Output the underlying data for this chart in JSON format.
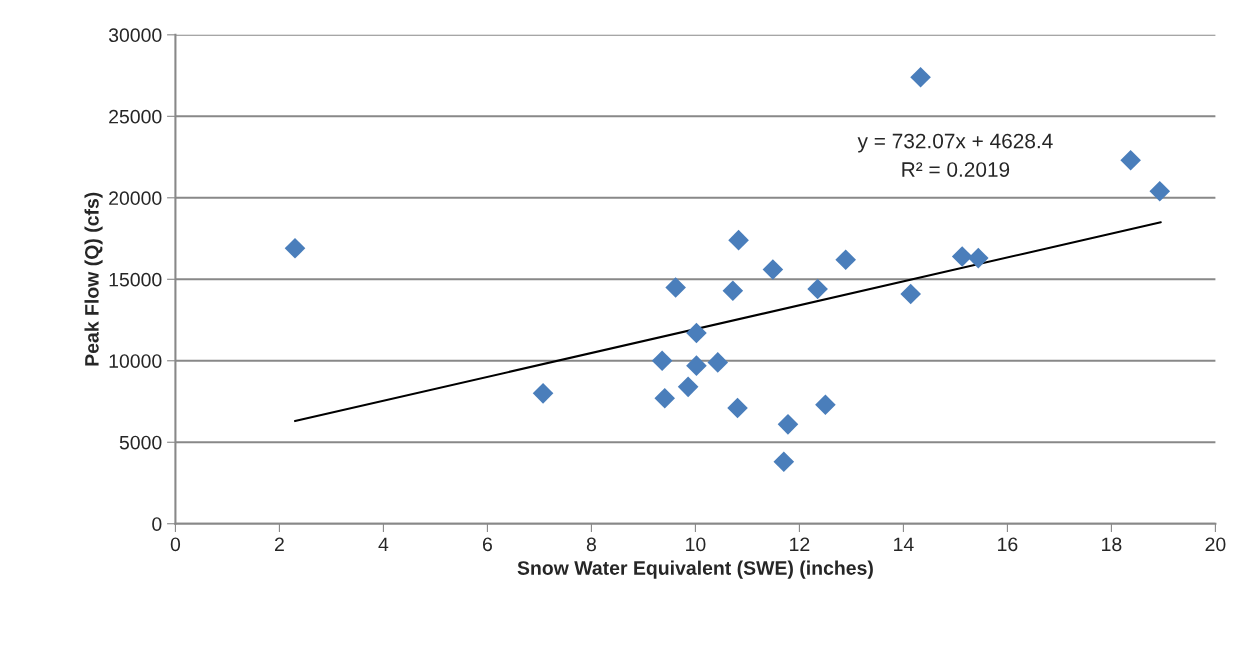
{
  "chart_data": {
    "type": "scatter",
    "xlabel": "Snow Water Equivalent (SWE) (inches)",
    "ylabel": "Peak Flow (Q) (cfs)",
    "x": [
      2.3,
      7.07,
      9.36,
      9.41,
      9.62,
      9.86,
      10.02,
      10.02,
      10.43,
      10.72,
      10.81,
      10.83,
      11.49,
      11.7,
      11.78,
      12.35,
      12.5,
      12.89,
      14.14,
      14.33,
      15.13,
      15.44,
      18.37,
      18.93
    ],
    "series": [
      {
        "color": "#4a7ebb",
        "marker": "diamond",
        "values": [
          16900,
          8000,
          10000,
          7700,
          14500,
          8400,
          11700,
          9700,
          9900,
          14300,
          7100,
          17400,
          15600,
          3800,
          6100,
          14400,
          7300,
          16200,
          14100,
          27400,
          16400,
          16300,
          22300,
          20400
        ]
      },
      {
        "type": "line",
        "color": "#000000",
        "x": [
          2.3,
          18.95
        ],
        "values": [
          6300,
          18500
        ]
      }
    ],
    "annotations": [
      "y = 732.07x + 4628.4\nR² = 0.2019"
    ],
    "xlim": [
      0,
      20
    ],
    "xticks": [
      0,
      2,
      4,
      6,
      8,
      10,
      12,
      14,
      16,
      18,
      20
    ],
    "ylim": [
      0,
      30000
    ],
    "yticks": [
      0,
      5000,
      10000,
      15000,
      20000,
      25000,
      30000
    ],
    "grid": "y",
    "legend": false
  }
}
